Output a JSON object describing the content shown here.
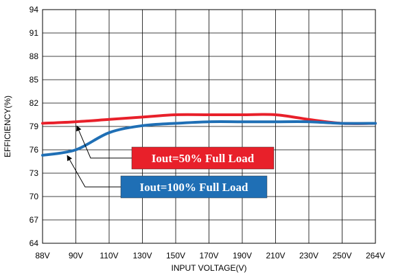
{
  "chart_data": {
    "type": "line",
    "title": "",
    "xlabel": "INPUT  VOLTAGE(V)",
    "ylabel": "EFFICIENCY(%)",
    "x": [
      88,
      90,
      110,
      130,
      150,
      170,
      190,
      210,
      230,
      250,
      264
    ],
    "x_tick_labels": [
      "88V",
      "90V",
      "110V",
      "130V",
      "150V",
      "170V",
      "190V",
      "210V",
      "230V",
      "250V",
      "264V"
    ],
    "y_ticks": [
      64,
      67,
      70,
      73,
      76,
      79,
      82,
      85,
      88,
      91,
      94
    ],
    "ylim": [
      64,
      94
    ],
    "grid": true,
    "legend": "annotation callouts with arrows",
    "series": [
      {
        "name": "Iout=50% Full Load",
        "color": "#e8202a",
        "values": [
          79.4,
          79.6,
          79.9,
          80.2,
          80.5,
          80.5,
          80.5,
          80.5,
          79.9,
          79.4,
          79.4
        ]
      },
      {
        "name": "Iout=100% Full Load",
        "color": "#1f6fb5",
        "values": [
          75.3,
          76.0,
          78.2,
          79.1,
          79.4,
          79.6,
          79.6,
          79.6,
          79.6,
          79.4,
          79.4
        ]
      }
    ],
    "annotations": [
      {
        "text": "Iout=50% Full Load",
        "series": 0,
        "box_color": "#e8202a"
      },
      {
        "text": "Iout=100% Full Load",
        "series": 1,
        "box_color": "#1f6fb5"
      }
    ]
  }
}
